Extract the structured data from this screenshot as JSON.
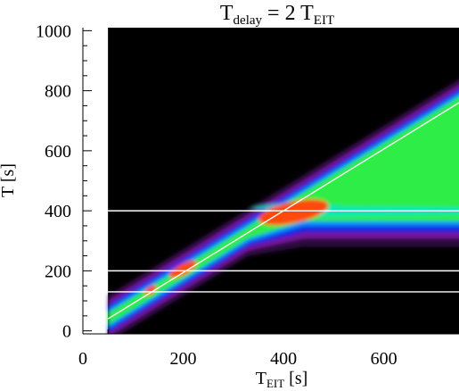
{
  "chart_data": {
    "type": "heatmap",
    "title": {
      "main": "T",
      "main_sub": "delay",
      "rest": " = 2 T",
      "rest_sub": "EIT"
    },
    "xlabel": {
      "main": "T",
      "sub": "EIT",
      "rest": " [s]"
    },
    "ylabel": "T [s]",
    "xlim": [
      0,
      750
    ],
    "ylim": [
      -10,
      1010
    ],
    "x_ticks": [
      0,
      200,
      400,
      600
    ],
    "y_ticks": [
      0,
      200,
      400,
      600,
      800,
      1000
    ],
    "data_x_start": 50,
    "horizontal_lines": [
      130,
      200,
      400
    ],
    "diagonal_line": {
      "x_start": 50,
      "y_start": 40,
      "x_end": 750,
      "y_end": 760
    },
    "colormap": [
      "#000000",
      "#3a0a55",
      "#7a1aa0",
      "#0a24e6",
      "#0a8cff",
      "#00e5d2",
      "#2ff23c",
      "#ff4a10"
    ],
    "background": "#000000",
    "line_color": "#ffffff"
  }
}
